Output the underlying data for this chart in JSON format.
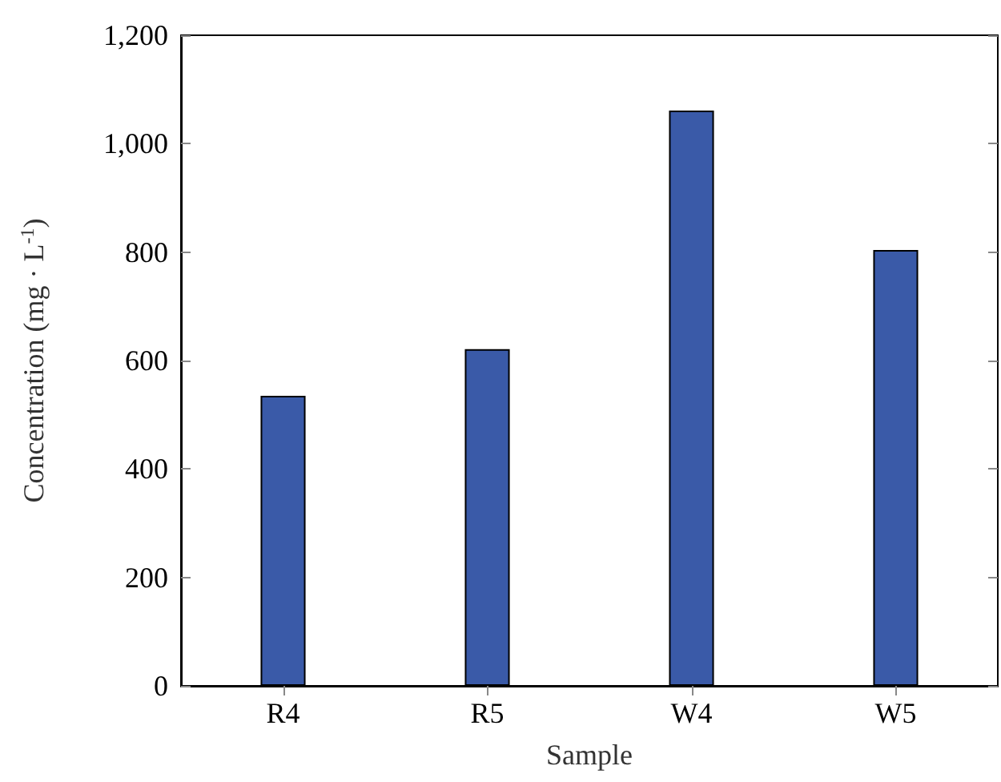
{
  "chart_data": {
    "type": "bar",
    "categories": [
      "R4",
      "R5",
      "W4",
      "W5"
    ],
    "series": [
      {
        "color": "#3a5aa8",
        "values": [
          535,
          621,
          1061,
          804
        ]
      }
    ],
    "xlabel": "Sample",
    "ylabel": "Concentration (mg · L$^{-1}$)",
    "ylim": [
      0,
      1200
    ],
    "yticks": [
      0,
      200,
      400,
      600,
      800,
      {
        "value": 1000,
        "label": "1,000"
      },
      {
        "value": 1200,
        "label": "1,200"
      }
    ],
    "grid": false
  }
}
